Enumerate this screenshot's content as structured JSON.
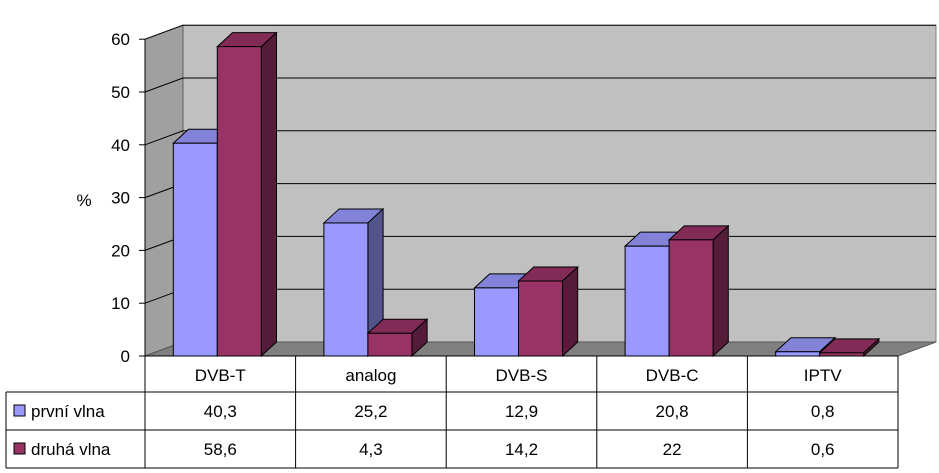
{
  "chart_data": {
    "type": "bar",
    "title": "",
    "ylabel": "%",
    "xlabel": "",
    "ylim": [
      0,
      60
    ],
    "yticks": [
      "0",
      "10",
      "20",
      "30",
      "40",
      "50",
      "60"
    ],
    "grid": true,
    "three_d": true,
    "categories": [
      "DVB-T",
      "analog",
      "DVB-S",
      "DVB-C",
      "IPTV"
    ],
    "series": [
      {
        "name": "první vlna",
        "color": "#9999ff",
        "values": [
          40.3,
          25.2,
          12.9,
          20.8,
          0.8
        ],
        "labels": [
          "40,3",
          "25,2",
          "12,9",
          "20,8",
          "0,8"
        ]
      },
      {
        "name": "druhá vlna",
        "color": "#993366",
        "values": [
          58.6,
          4.3,
          14.2,
          22,
          0.6
        ],
        "labels": [
          "58,6",
          "4,3",
          "14,2",
          "22",
          "0,6"
        ]
      }
    ],
    "legend": "data-table-left"
  }
}
